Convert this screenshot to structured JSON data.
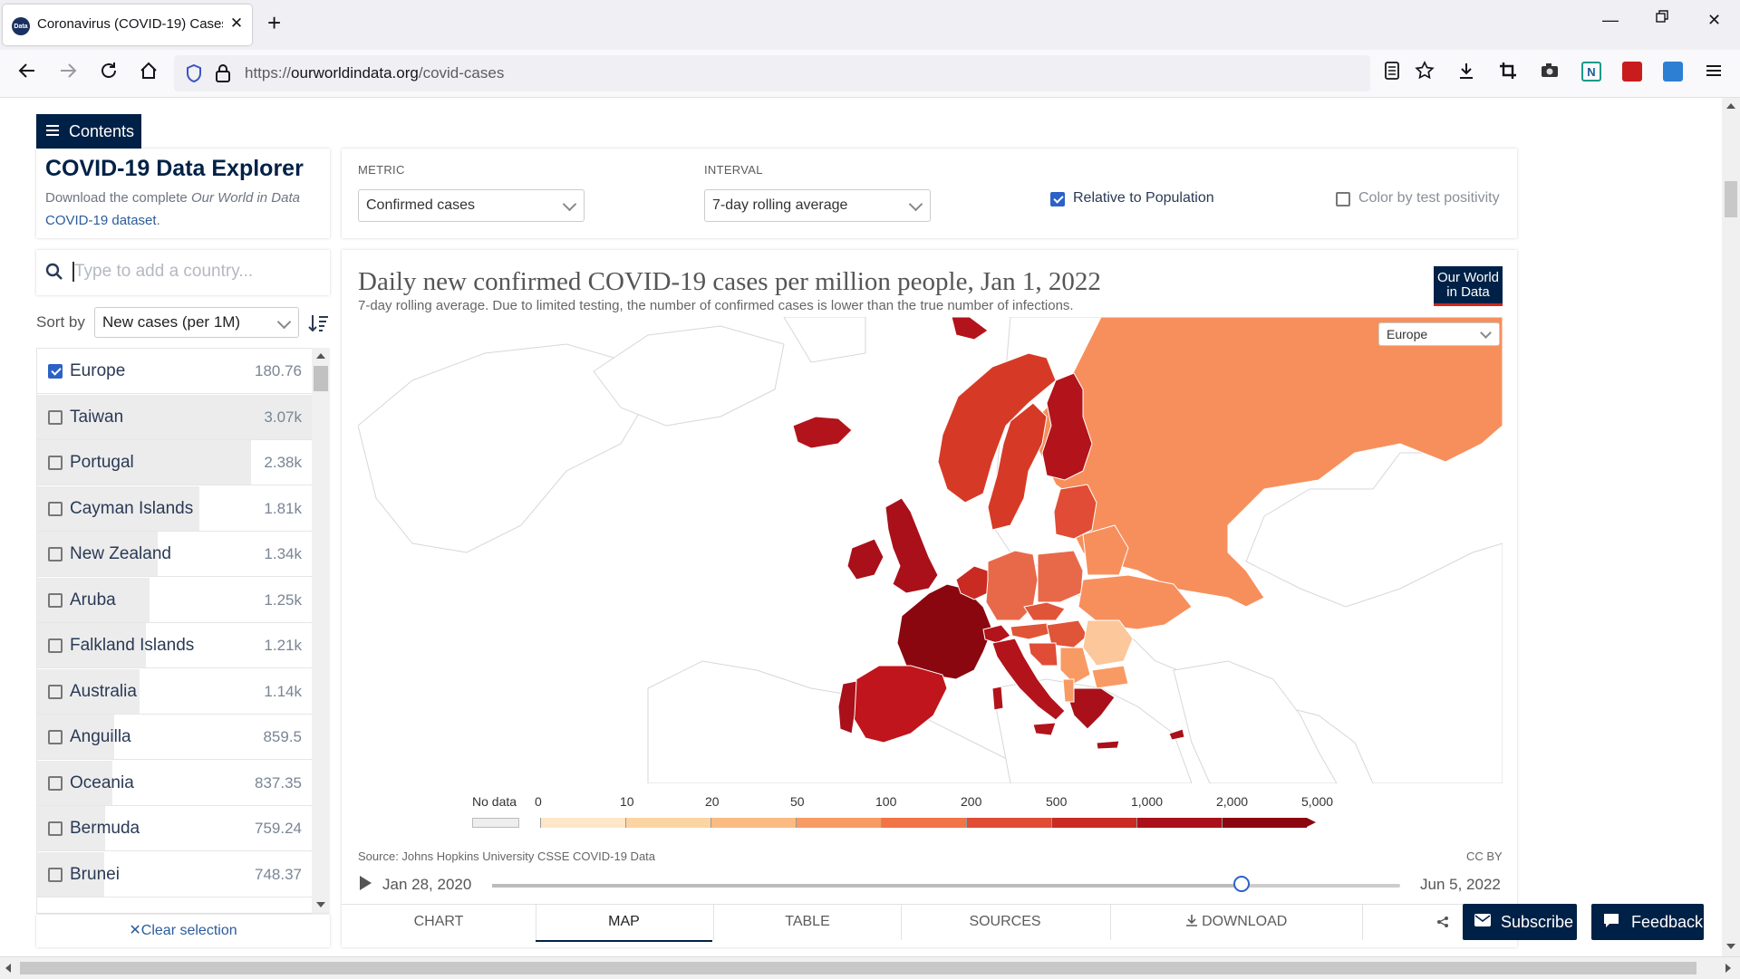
{
  "browser": {
    "tab_title": "Coronavirus (COVID-19) Cases -",
    "tab_favicon_text": "Data",
    "url_scheme": "https://",
    "url_host": "ourworldindata.org",
    "url_path": "/covid-cases"
  },
  "sidebar": {
    "contents_label": "Contents",
    "explorer_title": "COVID-19 Data Explorer",
    "explorer_sub_1": "Download the complete ",
    "explorer_sub_italic": "Our World in Data",
    "explorer_sub_link": "COVID-19 dataset",
    "explorer_sub_end": ".",
    "search_placeholder": "Type to add a country...",
    "sort_label": "Sort by",
    "sort_value": "New cases (per 1M)",
    "clear_label": "Clear selection",
    "items": [
      {
        "name": "Europe",
        "value": "180.76",
        "checked": true,
        "bar": 0.0
      },
      {
        "name": "Taiwan",
        "value": "3.07k",
        "checked": false,
        "bar": 1.0
      },
      {
        "name": "Portugal",
        "value": "2.38k",
        "checked": false,
        "bar": 0.775
      },
      {
        "name": "Cayman Islands",
        "value": "1.81k",
        "checked": false,
        "bar": 0.59
      },
      {
        "name": "New Zealand",
        "value": "1.34k",
        "checked": false,
        "bar": 0.436
      },
      {
        "name": "Aruba",
        "value": "1.25k",
        "checked": false,
        "bar": 0.407
      },
      {
        "name": "Falkland Islands",
        "value": "1.21k",
        "checked": false,
        "bar": 0.394
      },
      {
        "name": "Australia",
        "value": "1.14k",
        "checked": false,
        "bar": 0.371
      },
      {
        "name": "Anguilla",
        "value": "859.5",
        "checked": false,
        "bar": 0.28
      },
      {
        "name": "Oceania",
        "value": "837.35",
        "checked": false,
        "bar": 0.273
      },
      {
        "name": "Bermuda",
        "value": "759.24",
        "checked": false,
        "bar": 0.247
      },
      {
        "name": "Brunei",
        "value": "748.37",
        "checked": false,
        "bar": 0.244
      }
    ]
  },
  "controls": {
    "metric_label": "METRIC",
    "metric_value": "Confirmed cases",
    "interval_label": "INTERVAL",
    "interval_value": "7-day rolling average",
    "relative_label": "Relative to Population",
    "relative_checked": true,
    "positivity_label": "Color by test positivity",
    "positivity_checked": false
  },
  "chart": {
    "title": "Daily new confirmed COVID-19 cases per million people, Jan 1, 2022",
    "subtitle": "7-day rolling average. Due to limited testing, the number of confirmed cases is lower than the true number of infections.",
    "logo_line1": "Our World",
    "logo_line2": "in Data",
    "region_select": "Europe",
    "legend_nodata": "No data",
    "legend_ticks": [
      "0",
      "10",
      "20",
      "50",
      "100",
      "200",
      "500",
      "1,000",
      "2,000",
      "5,000"
    ],
    "legend_colors": [
      "#fde7c8",
      "#fcd4a2",
      "#fbbb82",
      "#f89a63",
      "#f17447",
      "#e04c35",
      "#c92a22",
      "#a9101a",
      "#8a0710"
    ],
    "source": "Source: Johns Hopkins University CSSE COVID-19 Data",
    "license": "CC BY",
    "timeline_start": "Jan 28, 2020",
    "timeline_end": "Jun 5, 2022",
    "timeline_position": 0.825
  },
  "tabs": {
    "chart": "CHART",
    "map": "MAP",
    "table": "TABLE",
    "sources": "SOURCES",
    "download": "DOWNLOAD",
    "active": "MAP"
  },
  "floating": {
    "subscribe": "Subscribe",
    "feedback": "Feedback"
  },
  "colors": {
    "brand": "#002147",
    "accent_red": "#ce261e",
    "link": "#2c5c9a",
    "checkbox": "#2c62c7"
  }
}
